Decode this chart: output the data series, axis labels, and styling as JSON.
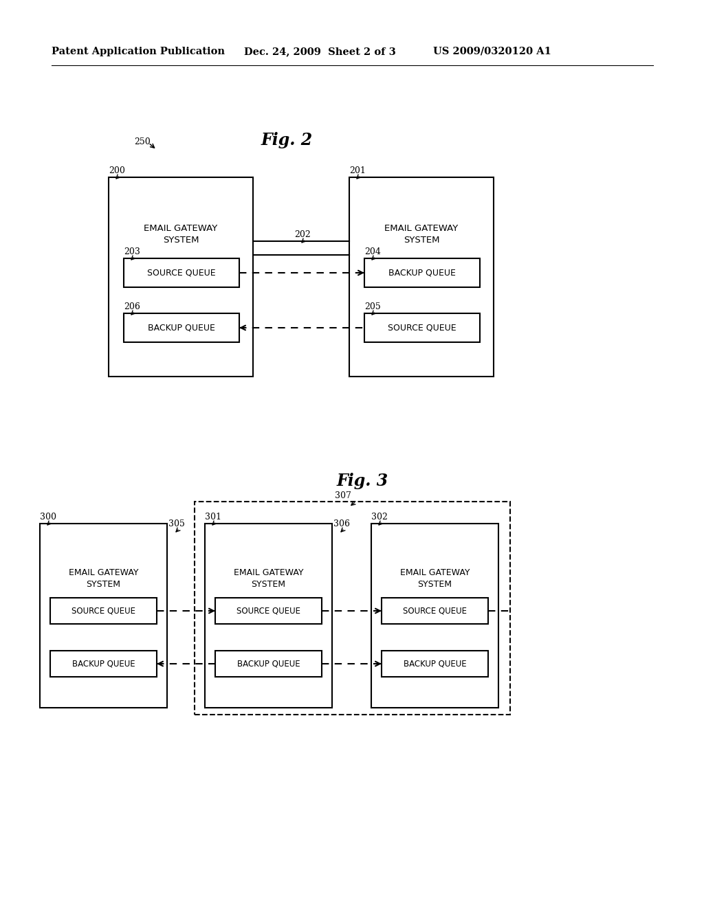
{
  "bg_color": "#ffffff",
  "header_left": "Patent Application Publication",
  "header_mid": "Dec. 24, 2009  Sheet 2 of 3",
  "header_right": "US 2009/0320120 A1",
  "fig2_title": "Fig. 2",
  "fig3_title": "Fig. 3",
  "fig2_label": "250",
  "fig2_sys1_label": "200",
  "fig2_sys2_label": "201",
  "fig2_conn_label": "202",
  "fig2_src_q1_label": "203",
  "fig2_bak_q2_label": "204",
  "fig2_bak_q1_label": "206",
  "fig2_src_q2_label": "205",
  "fig3_outer_label": "307",
  "fig3_sys1_label": "300",
  "fig3_sys2_label": "301",
  "fig3_sys3_label": "302",
  "fig3_conn12_label": "305",
  "fig3_conn23_label": "306"
}
